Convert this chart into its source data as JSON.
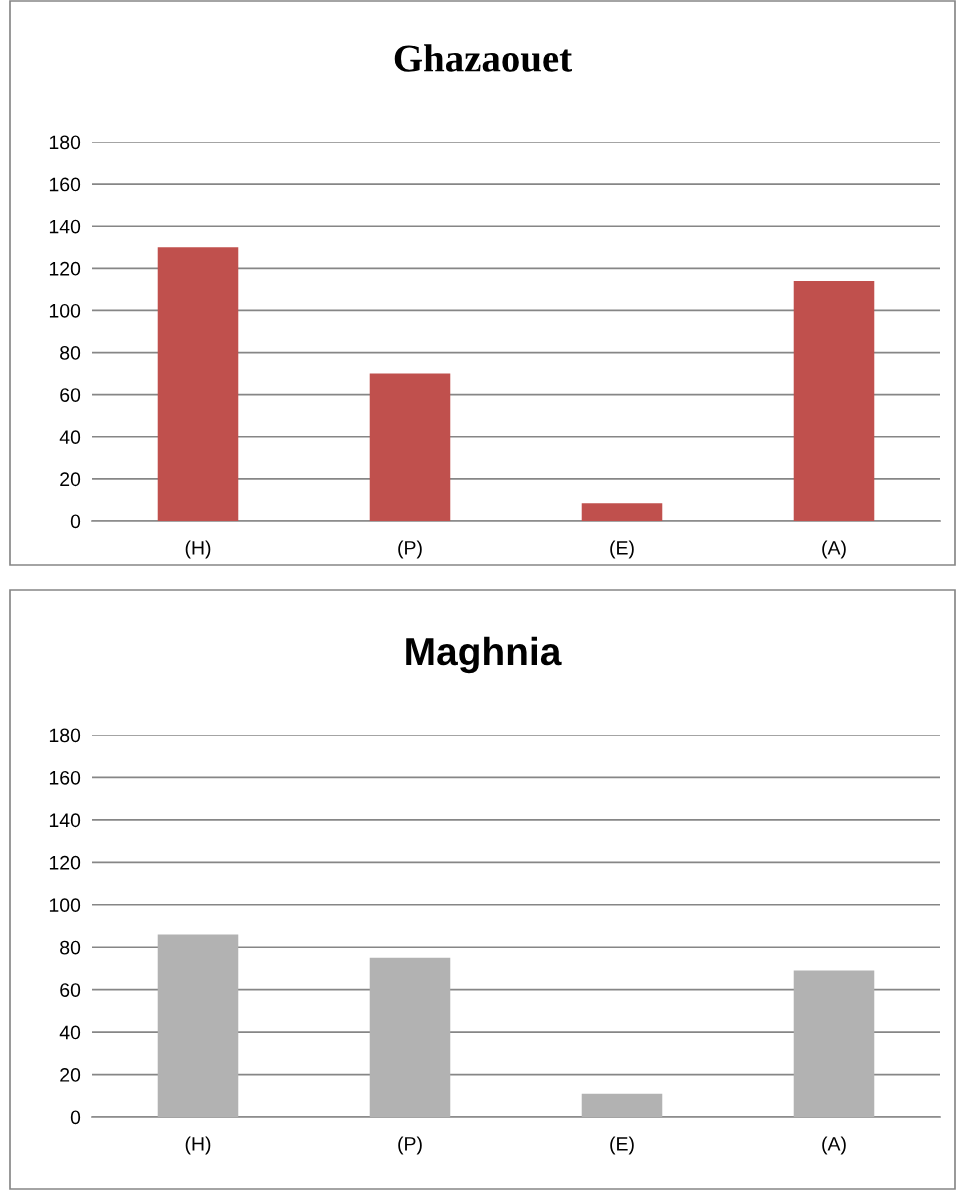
{
  "chart_data": [
    {
      "type": "bar",
      "title": "Ghazaouet",
      "categories": [
        "(H)",
        "(P)",
        "(E)",
        "(A)"
      ],
      "values": [
        130,
        70,
        8.4,
        114
      ],
      "color": "#c0504d",
      "ylim": [
        0,
        180
      ],
      "yticks": [
        0,
        20,
        40,
        60,
        80,
        100,
        120,
        140,
        160,
        180
      ],
      "grid": "y",
      "legend": false
    },
    {
      "type": "bar",
      "title": "Maghnia",
      "categories": [
        "(H)",
        "(P)",
        "(E)",
        "(A)"
      ],
      "values": [
        86,
        75,
        11,
        69
      ],
      "color": "#b2b2b2",
      "ylim": [
        0,
        180
      ],
      "yticks": [
        0,
        20,
        40,
        60,
        80,
        100,
        120,
        140,
        160,
        180
      ],
      "grid": "y",
      "legend": false
    }
  ]
}
